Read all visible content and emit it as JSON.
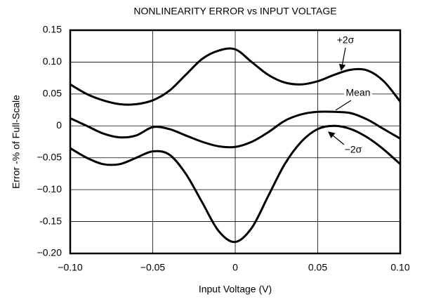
{
  "chart_data": {
    "type": "line",
    "title": "NONLINEARITY ERROR vs INPUT VOLTAGE",
    "x_label": "Input Voltage (V)",
    "y_label": "Error -% of Full-Scale",
    "x": [
      -0.1,
      -0.09,
      -0.08,
      -0.07,
      -0.06,
      -0.05,
      -0.04,
      -0.03,
      -0.02,
      -0.01,
      0,
      0.01,
      0.02,
      0.03,
      0.04,
      0.05,
      0.06,
      0.07,
      0.08,
      0.09,
      0.1
    ],
    "series": [
      {
        "name": "+2σ",
        "color": "#000000",
        "values": [
          0.065,
          0.05,
          0.04,
          0.034,
          0.034,
          0.04,
          0.055,
          0.08,
          0.105,
          0.118,
          0.12,
          0.1,
          0.08,
          0.068,
          0.065,
          0.07,
          0.08,
          0.088,
          0.087,
          0.07,
          0.038
        ]
      },
      {
        "name": "Mean",
        "color": "#000000",
        "values": [
          0.012,
          0,
          -0.012,
          -0.018,
          -0.015,
          -0.002,
          -0.005,
          -0.015,
          -0.025,
          -0.032,
          -0.033,
          -0.025,
          -0.01,
          0.008,
          0.018,
          0.022,
          0.022,
          0.02,
          0.01,
          -0.005,
          -0.02
        ]
      },
      {
        "name": "−2σ",
        "color": "#000000",
        "values": [
          -0.035,
          -0.05,
          -0.06,
          -0.06,
          -0.05,
          -0.04,
          -0.045,
          -0.075,
          -0.12,
          -0.165,
          -0.182,
          -0.16,
          -0.11,
          -0.06,
          -0.025,
          -0.005,
          0,
          -0.005,
          -0.018,
          -0.037,
          -0.06
        ]
      }
    ],
    "xlim": [
      -0.1,
      0.1
    ],
    "xticks": [
      {
        "value": -0.1,
        "label": "−0.10"
      },
      {
        "value": -0.05,
        "label": "−0.05"
      },
      0,
      0.05,
      {
        "value": 0.1,
        "label": "0.10"
      }
    ],
    "ylim": [
      -0.2,
      0.15
    ],
    "yticks": [
      0.15,
      {
        "value": 0.1,
        "label": "0.10"
      },
      0.05,
      0,
      {
        "value": -0.05,
        "label": "−0.05"
      },
      {
        "value": -0.1,
        "label": "−0.10"
      },
      -0.15,
      {
        "value": -0.2,
        "label": "−0.20"
      }
    ],
    "grid": true
  }
}
